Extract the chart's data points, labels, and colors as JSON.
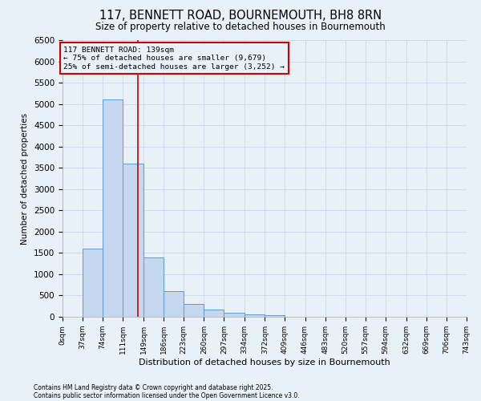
{
  "title": "117, BENNETT ROAD, BOURNEMOUTH, BH8 8RN",
  "subtitle": "Size of property relative to detached houses in Bournemouth",
  "xlabel": "Distribution of detached houses by size in Bournemouth",
  "ylabel": "Number of detached properties",
  "footnote1": "Contains HM Land Registry data © Crown copyright and database right 2025.",
  "footnote2": "Contains public sector information licensed under the Open Government Licence v3.0.",
  "property_size": 139,
  "pct_smaller": 75,
  "n_smaller": 9679,
  "pct_larger_semi": 25,
  "n_larger_semi": 3252,
  "bin_edges": [
    0,
    37,
    74,
    111,
    149,
    186,
    223,
    260,
    297,
    334,
    372,
    409,
    446,
    483,
    520,
    557,
    594,
    632,
    669,
    706,
    743
  ],
  "bar_heights": [
    0,
    1600,
    5100,
    3600,
    1400,
    600,
    300,
    170,
    100,
    50,
    30,
    0,
    0,
    0,
    0,
    0,
    0,
    0,
    0,
    0
  ],
  "bar_color": "#c5d8ef",
  "bar_edge_color": "#5b9bd5",
  "vline_color": "#cc0000",
  "vline_x": 139,
  "annotation_box_color": "#cc0000",
  "ylim": [
    0,
    6500
  ],
  "yticks": [
    0,
    500,
    1000,
    1500,
    2000,
    2500,
    3000,
    3500,
    4000,
    4500,
    5000,
    5500,
    6000,
    6500
  ],
  "grid_color": "#c8d8ea",
  "bg_color": "#e8f0f8"
}
